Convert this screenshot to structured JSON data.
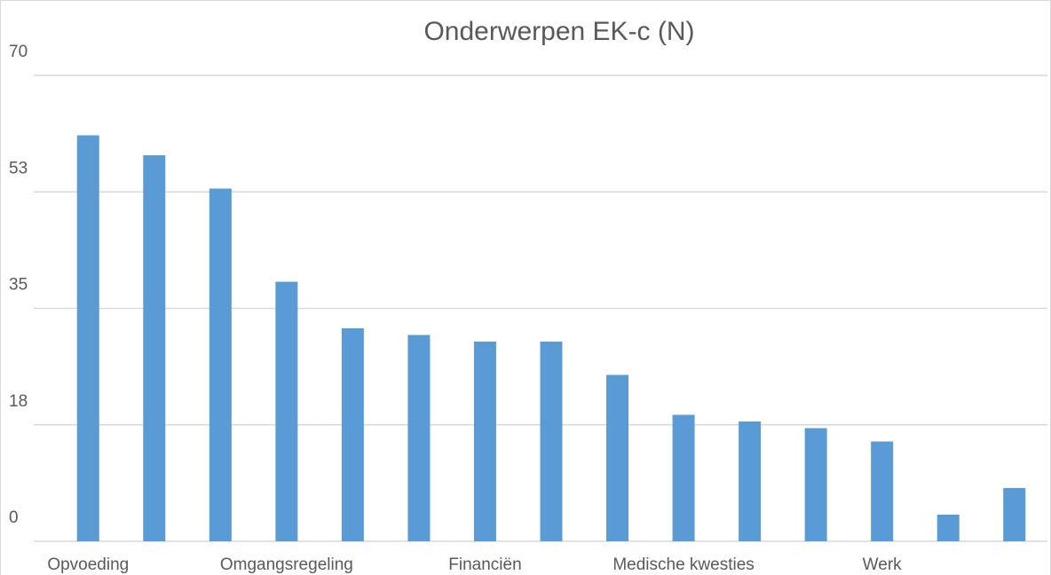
{
  "chart_data": {
    "type": "bar",
    "title": "Onderwerpen EK-c (N)",
    "categories": [
      "Opvoeding",
      null,
      null,
      "Omgangsregeling",
      null,
      null,
      "Financiën",
      null,
      null,
      "Medische kwesties",
      null,
      null,
      "Werk",
      null,
      null
    ],
    "values": [
      61,
      58,
      53,
      39,
      32,
      31,
      30,
      30,
      25,
      19,
      18,
      17,
      15,
      4,
      8
    ],
    "color": "#5b9bd5",
    "ylim": [
      0,
      70
    ],
    "yticks": [
      0,
      {
        "value": 17.5,
        "label": "18"
      },
      35,
      {
        "value": 52.5,
        "label": "53"
      },
      70
    ],
    "grid": true
  }
}
